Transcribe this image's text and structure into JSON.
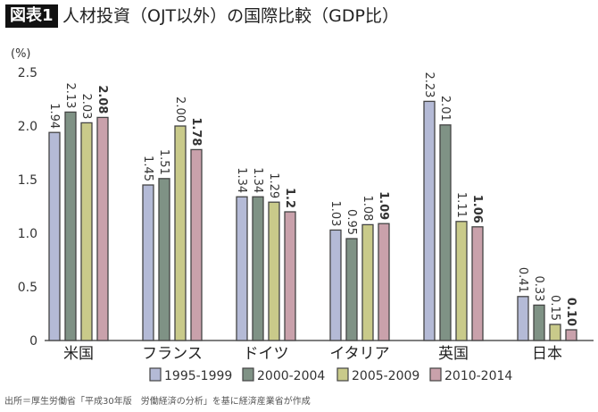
{
  "header": {
    "badge": "図表1",
    "title": "人材投資（OJT以外）の国際比較（GDP比）"
  },
  "source": "出所＝厚生労働省「平成30年版　労働経済の分析」を基に経済産業省が作成",
  "chart_data": {
    "type": "bar",
    "title": "人材投資（OJT以外）の国際比較（GDP比）",
    "ylabel": "(%)",
    "ylim": [
      0,
      2.5
    ],
    "yticks": [
      "0",
      "0.5",
      "1.0",
      "1.5",
      "2.0",
      "2.5"
    ],
    "grid": false,
    "legend": "bottom",
    "categories": [
      "米国",
      "フランス",
      "ドイツ",
      "イタリア",
      "英国",
      "日本"
    ],
    "series": [
      {
        "name": "1995-1999",
        "color": "#b4bad6",
        "values": [
          1.94,
          1.45,
          1.34,
          1.03,
          2.23,
          0.41
        ],
        "labels": [
          "1.94",
          "1.45",
          "1.34",
          "1.03",
          "2.23",
          "0.41"
        ]
      },
      {
        "name": "2000-2004",
        "color": "#7f9285",
        "values": [
          2.13,
          1.51,
          1.34,
          0.95,
          2.01,
          0.33
        ],
        "labels": [
          "2.13",
          "1.51",
          "1.34",
          "0.95",
          "2.01",
          "0.33"
        ]
      },
      {
        "name": "2005-2009",
        "color": "#c9ca8a",
        "values": [
          2.03,
          2.0,
          1.29,
          1.08,
          1.11,
          0.15
        ],
        "labels": [
          "2.03",
          "2.00",
          "1.29",
          "1.08",
          "1.11",
          "0.15"
        ]
      },
      {
        "name": "2010-2014",
        "color": "#c9a1ab",
        "values": [
          2.08,
          1.78,
          1.2,
          1.09,
          1.06,
          0.1
        ],
        "labels": [
          "2.08",
          "1.78",
          "1.2",
          "1.09",
          "1.06",
          "0.10"
        ]
      }
    ]
  }
}
